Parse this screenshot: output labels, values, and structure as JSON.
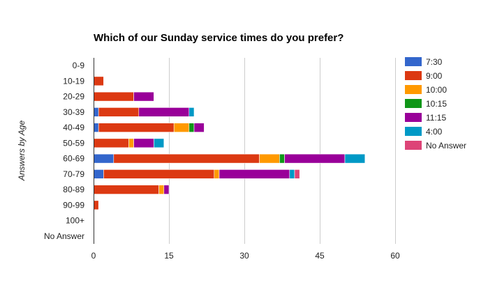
{
  "chart_data": {
    "type": "bar",
    "orientation": "horizontal",
    "stacked": true,
    "title": "Which of our Sunday service times do you prefer?",
    "xlabel": "",
    "ylabel": "Answers by Age",
    "xlim": [
      0,
      60
    ],
    "xticks": [
      "0",
      "15",
      "30",
      "45",
      "60"
    ],
    "grid": true,
    "legend_position": "right",
    "categories": [
      "0-9",
      "10-19",
      "20-29",
      "30-39",
      "40-49",
      "50-59",
      "60-69",
      "70-79",
      "80-89",
      "90-99",
      "100+",
      "No Answer"
    ],
    "series": [
      {
        "name": "7:30",
        "color": "#3366cc",
        "values": [
          0,
          0,
          0,
          1,
          1,
          0,
          4,
          2,
          0,
          0,
          0,
          0
        ]
      },
      {
        "name": "9:00",
        "color": "#dc3912",
        "values": [
          0,
          2,
          8,
          8,
          15,
          7,
          29,
          22,
          13,
          1,
          0,
          0
        ]
      },
      {
        "name": "10:00",
        "color": "#ff9900",
        "values": [
          0,
          0,
          0,
          0,
          3,
          1,
          4,
          1,
          1,
          0,
          0,
          0
        ]
      },
      {
        "name": "10:15",
        "color": "#109618",
        "values": [
          0,
          0,
          0,
          0,
          1,
          0,
          1,
          0,
          0,
          0,
          0,
          0
        ]
      },
      {
        "name": "11:15",
        "color": "#990099",
        "values": [
          0,
          0,
          4,
          10,
          2,
          4,
          12,
          14,
          1,
          0,
          0,
          0
        ]
      },
      {
        "name": "4:00",
        "color": "#0099c6",
        "values": [
          0,
          0,
          0,
          1,
          0,
          2,
          4,
          1,
          0,
          0,
          0,
          0
        ]
      },
      {
        "name": "No Answer",
        "color": "#dd4477",
        "values": [
          0,
          0,
          0,
          0,
          0,
          0,
          0,
          1,
          0,
          0,
          0,
          0
        ]
      }
    ]
  }
}
